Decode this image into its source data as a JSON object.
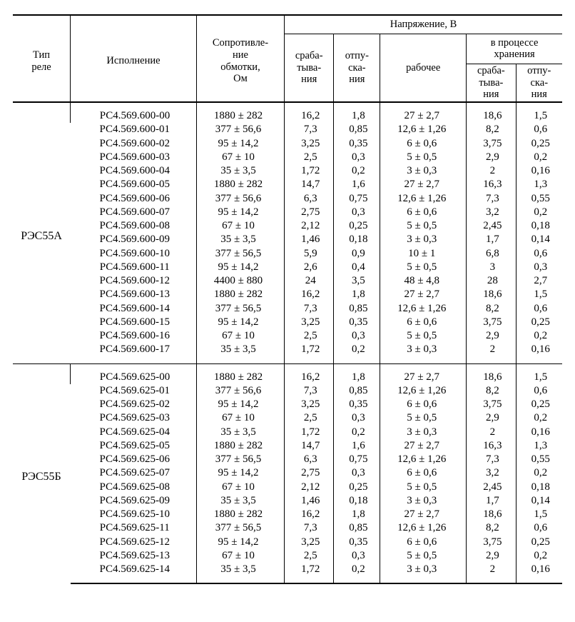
{
  "header": {
    "type": "Тип\nреле",
    "exec": "Исполнение",
    "res": "Сопротивле-\nние\nобмотки,\nОм",
    "voltage": "Напряжение, В",
    "v_act": "сраба-\nтыва-\nния",
    "v_rel": "отпу-\nска-\nния",
    "v_work": "рабочее",
    "v_proc": "в процессе\nхранения",
    "v_proc_act": "сраба-\nтыва-\nния",
    "v_proc_rel": "отпу-\nска-\nния"
  },
  "colors": {
    "text": "#000000",
    "bg": "#ffffff",
    "rule": "#000000"
  },
  "font": {
    "family": "Times New Roman",
    "body_size_pt": 11,
    "header_size_pt": 11
  },
  "groups": [
    {
      "type": "РЭС55А",
      "rows": [
        {
          "exec": "РС4.569.600-00",
          "res": "1880 ± 282",
          "v1": "16,2",
          "v2": "1,8",
          "v3": "27 ± 2,7",
          "v4": "18,6",
          "v5": "1,5"
        },
        {
          "exec": "РС4.569.600-01",
          "res": "377 ± 56,6",
          "v1": "7,3",
          "v2": "0,85",
          "v3": "12,6 ± 1,26",
          "v4": "8,2",
          "v5": "0,6"
        },
        {
          "exec": "РС4.569.600-02",
          "res": "95 ± 14,2",
          "v1": "3,25",
          "v2": "0,35",
          "v3": "6 ± 0,6",
          "v4": "3,75",
          "v5": "0,25"
        },
        {
          "exec": "РС4.569.600-03",
          "res": "67 ± 10",
          "v1": "2,5",
          "v2": "0,3",
          "v3": "5 ± 0,5",
          "v4": "2,9",
          "v5": "0,2"
        },
        {
          "exec": "РС4.569.600-04",
          "res": "35 ± 3,5",
          "v1": "1,72",
          "v2": "0,2",
          "v3": "3 ± 0,3",
          "v4": "2",
          "v5": "0,16"
        },
        {
          "exec": "РС4.569.600-05",
          "res": "1880 ± 282",
          "v1": "14,7",
          "v2": "1,6",
          "v3": "27 ± 2,7",
          "v4": "16,3",
          "v5": "1,3"
        },
        {
          "exec": "РС4.569.600-06",
          "res": "377 ± 56,6",
          "v1": "6,3",
          "v2": "0,75",
          "v3": "12,6 ± 1,26",
          "v4": "7,3",
          "v5": "0,55"
        },
        {
          "exec": "РС4.569.600-07",
          "res": "95 ± 14,2",
          "v1": "2,75",
          "v2": "0,3",
          "v3": "6 ± 0,6",
          "v4": "3,2",
          "v5": "0,2"
        },
        {
          "exec": "РС4.569.600-08",
          "res": "67 ± 10",
          "v1": "2,12",
          "v2": "0,25",
          "v3": "5 ± 0,5",
          "v4": "2,45",
          "v5": "0,18"
        },
        {
          "exec": "РС4.569.600-09",
          "res": "35 ± 3,5",
          "v1": "1,46",
          "v2": "0,18",
          "v3": "3 ± 0,3",
          "v4": "1,7",
          "v5": "0,14"
        },
        {
          "exec": "РС4.569.600-10",
          "res": "377 ± 56,5",
          "v1": "5,9",
          "v2": "0,9",
          "v3": "10 ± 1",
          "v4": "6,8",
          "v5": "0,6"
        },
        {
          "exec": "РС4.569.600-11",
          "res": "95 ± 14,2",
          "v1": "2,6",
          "v2": "0,4",
          "v3": "5 ± 0,5",
          "v4": "3",
          "v5": "0,3"
        },
        {
          "exec": "РС4.569.600-12",
          "res": "4400 ± 880",
          "v1": "24",
          "v2": "3,5",
          "v3": "48 ± 4,8",
          "v4": "28",
          "v5": "2,7"
        },
        {
          "exec": "РС4.569.600-13",
          "res": "1880 ± 282",
          "v1": "16,2",
          "v2": "1,8",
          "v3": "27 ± 2,7",
          "v4": "18,6",
          "v5": "1,5"
        },
        {
          "exec": "РС4.569.600-14",
          "res": "377 ± 56,5",
          "v1": "7,3",
          "v2": "0,85",
          "v3": "12,6 ± 1,26",
          "v4": "8,2",
          "v5": "0,6"
        },
        {
          "exec": "РС4.569.600-15",
          "res": "95 ± 14,2",
          "v1": "3,25",
          "v2": "0,35",
          "v3": "6 ± 0,6",
          "v4": "3,75",
          "v5": "0,25"
        },
        {
          "exec": "РС4.569.600-16",
          "res": "67 ± 10",
          "v1": "2,5",
          "v2": "0,3",
          "v3": "5 ± 0,5",
          "v4": "2,9",
          "v5": "0,2"
        },
        {
          "exec": "РС4.569.600-17",
          "res": "35 ± 3,5",
          "v1": "1,72",
          "v2": "0,2",
          "v3": "3 ± 0,3",
          "v4": "2",
          "v5": "0,16"
        }
      ]
    },
    {
      "type": "РЭС55Б",
      "rows": [
        {
          "exec": "РС4.569.625-00",
          "res": "1880 ± 282",
          "v1": "16,2",
          "v2": "1,8",
          "v3": "27 ± 2,7",
          "v4": "18,6",
          "v5": "1,5"
        },
        {
          "exec": "РС4.569.625-01",
          "res": "377 ± 56,6",
          "v1": "7,3",
          "v2": "0,85",
          "v3": "12,6 ± 1,26",
          "v4": "8,2",
          "v5": "0,6"
        },
        {
          "exec": "РС4.569.625-02",
          "res": "95 ± 14,2",
          "v1": "3,25",
          "v2": "0,35",
          "v3": "6 ± 0,6",
          "v4": "3,75",
          "v5": "0,25"
        },
        {
          "exec": "РС4.569.625-03",
          "res": "67 ± 10",
          "v1": "2,5",
          "v2": "0,3",
          "v3": "5 ± 0,5",
          "v4": "2,9",
          "v5": "0,2"
        },
        {
          "exec": "РС4.569.625-04",
          "res": "35 ± 3,5",
          "v1": "1,72",
          "v2": "0,2",
          "v3": "3 ± 0,3",
          "v4": "2",
          "v5": "0,16"
        },
        {
          "exec": "РС4.569.625-05",
          "res": "1880 ± 282",
          "v1": "14,7",
          "v2": "1,6",
          "v3": "27 ± 2,7",
          "v4": "16,3",
          "v5": "1,3"
        },
        {
          "exec": "РС4.569.625-06",
          "res": "377 ± 56,5",
          "v1": "6,3",
          "v2": "0,75",
          "v3": "12,6 ± 1,26",
          "v4": "7,3",
          "v5": "0,55"
        },
        {
          "exec": "РС4.569.625-07",
          "res": "95 ± 14,2",
          "v1": "2,75",
          "v2": "0,3",
          "v3": "6 ± 0,6",
          "v4": "3,2",
          "v5": "0,2"
        },
        {
          "exec": "РС4.569.625-08",
          "res": "67 ± 10",
          "v1": "2,12",
          "v2": "0,25",
          "v3": "5 ± 0,5",
          "v4": "2,45",
          "v5": "0,18"
        },
        {
          "exec": "РС4.569.625-09",
          "res": "35 ± 3,5",
          "v1": "1,46",
          "v2": "0,18",
          "v3": "3 ± 0,3",
          "v4": "1,7",
          "v5": "0,14"
        },
        {
          "exec": "РС4.569.625-10",
          "res": "1880 ± 282",
          "v1": "16,2",
          "v2": "1,8",
          "v3": "27 ± 2,7",
          "v4": "18,6",
          "v5": "1,5"
        },
        {
          "exec": "РС4.569.625-11",
          "res": "377 ± 56,5",
          "v1": "7,3",
          "v2": "0,85",
          "v3": "12,6 ± 1,26",
          "v4": "8,2",
          "v5": "0,6"
        },
        {
          "exec": "РС4.569.625-12",
          "res": "95 ± 14,2",
          "v1": "3,25",
          "v2": "0,35",
          "v3": "6 ± 0,6",
          "v4": "3,75",
          "v5": "0,25"
        },
        {
          "exec": "РС4.569.625-13",
          "res": "67 ± 10",
          "v1": "2,5",
          "v2": "0,3",
          "v3": "5 ± 0,5",
          "v4": "2,9",
          "v5": "0,2"
        },
        {
          "exec": "РС4.569.625-14",
          "res": "35 ± 3,5",
          "v1": "1,72",
          "v2": "0,2",
          "v3": "3 ± 0,3",
          "v4": "2",
          "v5": "0,16"
        }
      ]
    }
  ]
}
